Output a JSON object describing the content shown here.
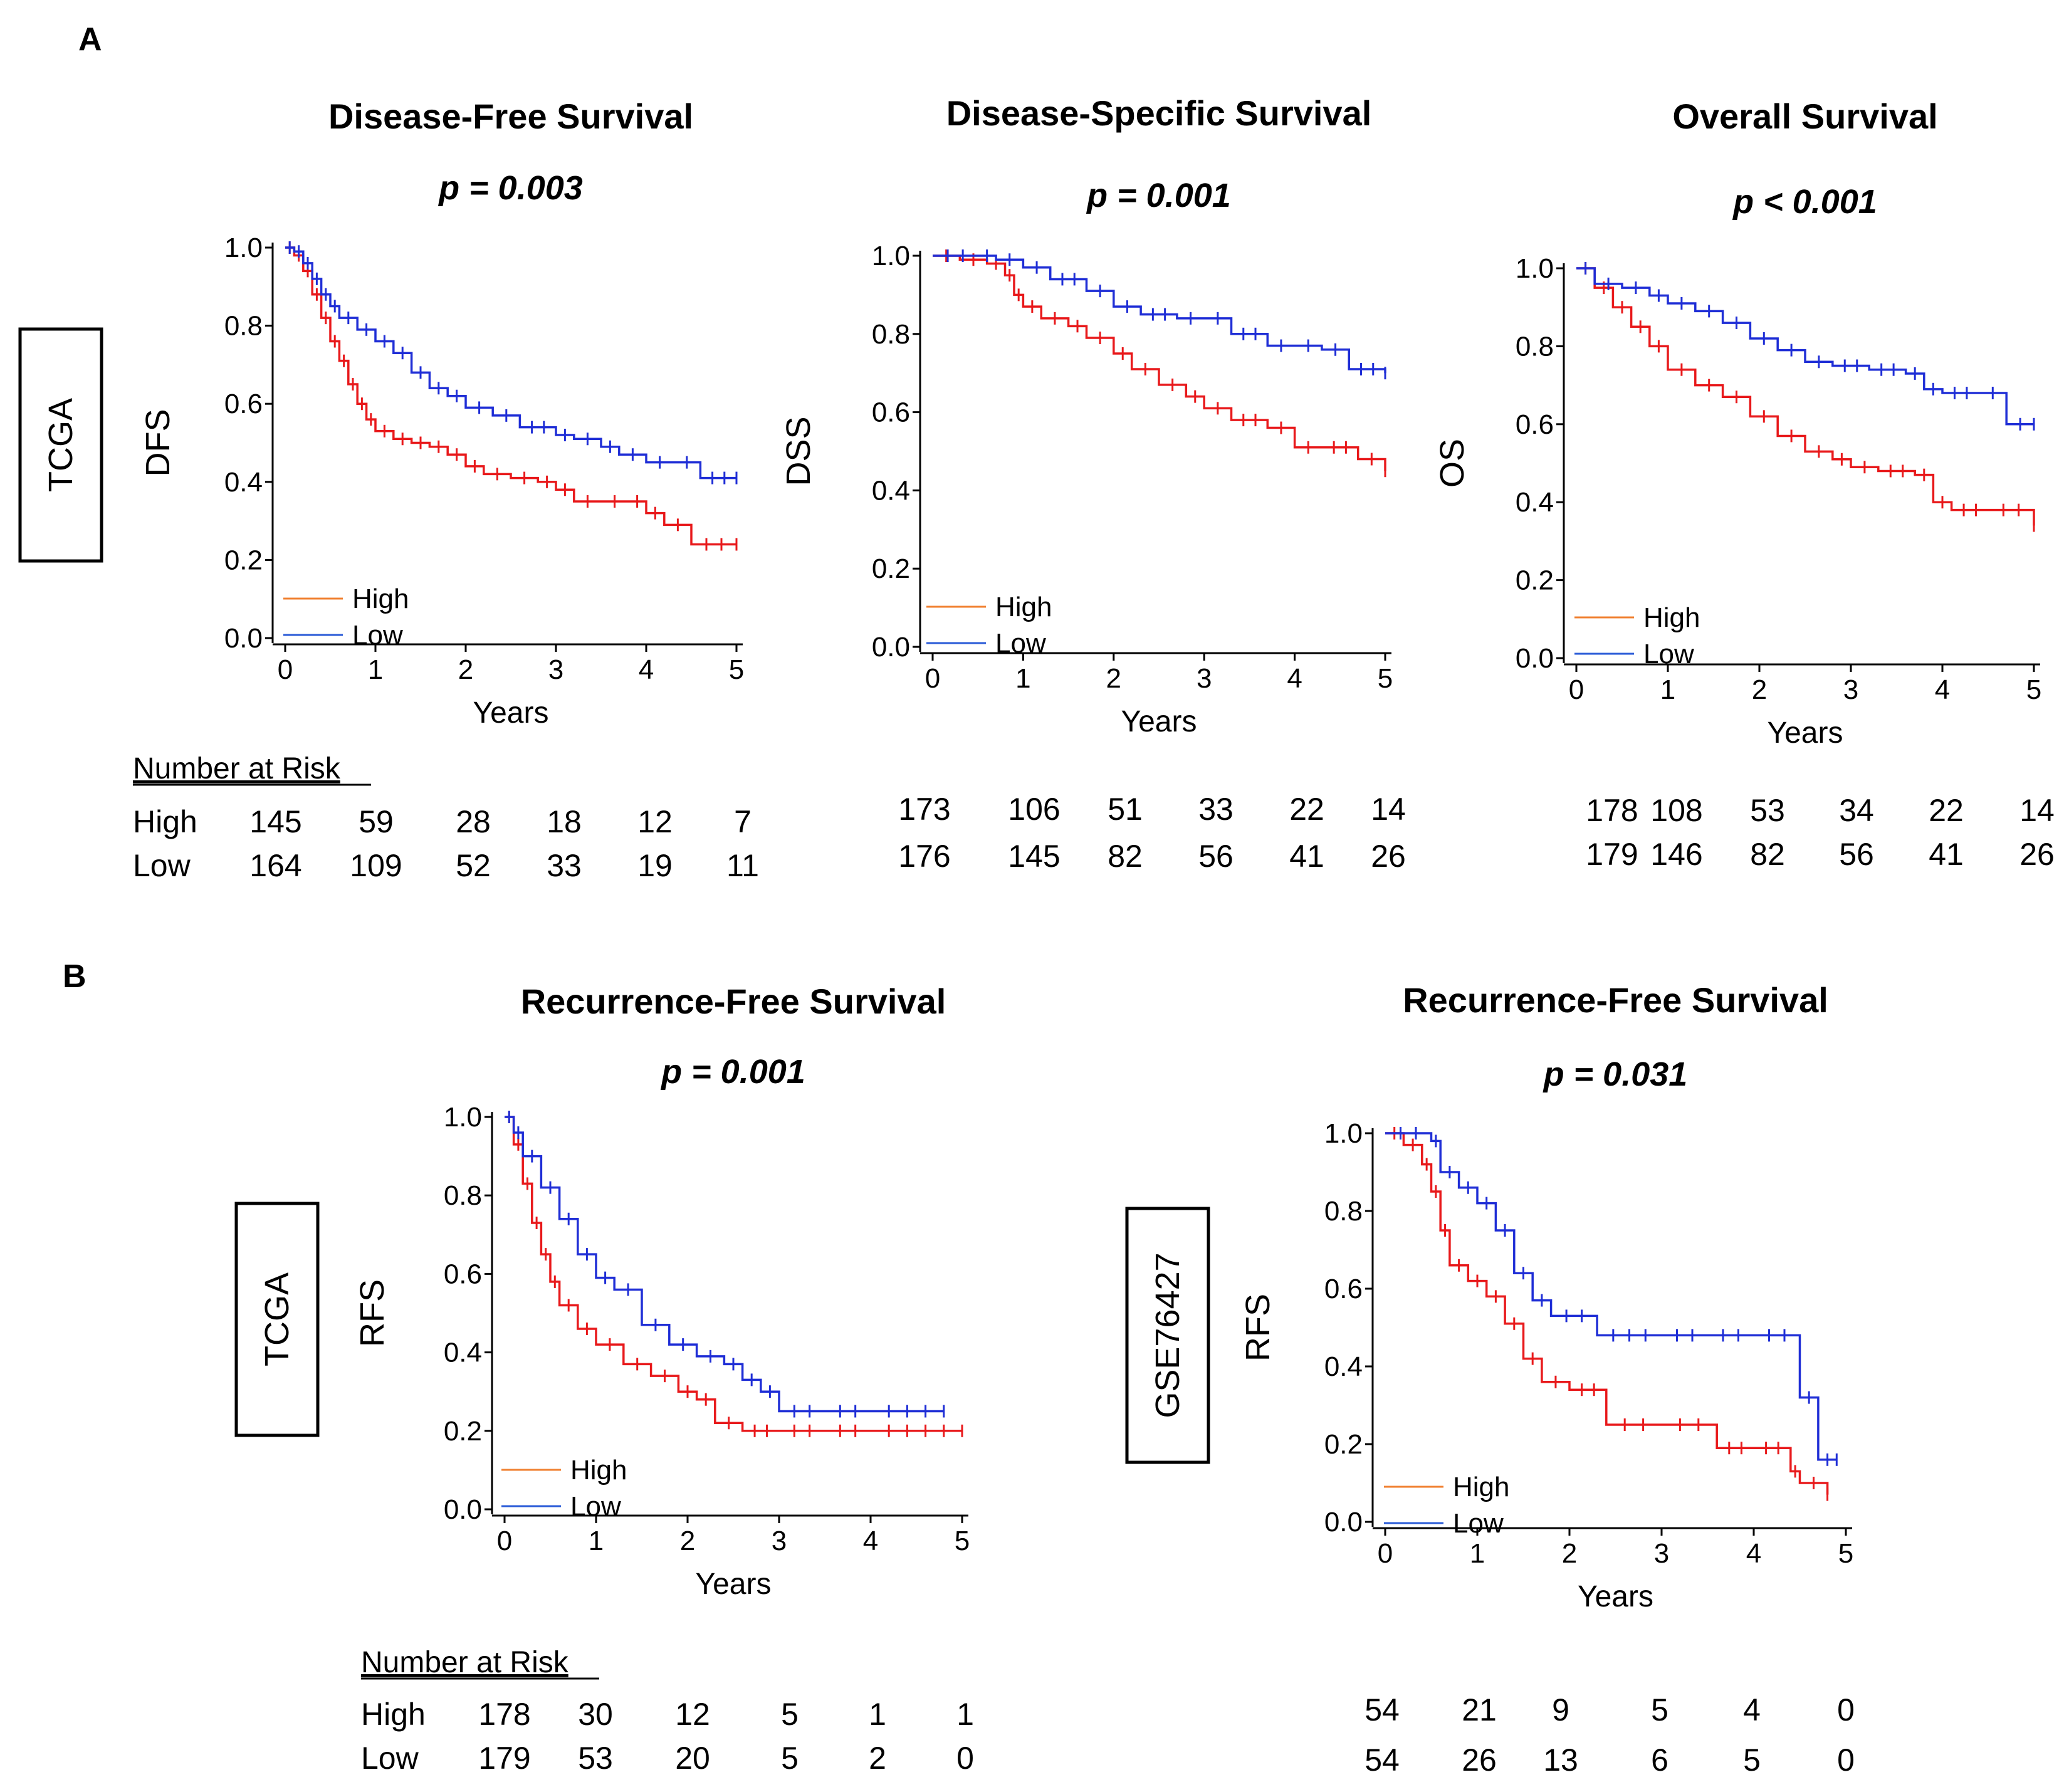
{
  "figure": {
    "section_a_label": "A",
    "section_b_label": "B"
  },
  "colors": {
    "high": "#e8191b",
    "low": "#1f2ed6",
    "legend_high": "#f08030",
    "legend_low": "#2a5bd7",
    "axis": "#000000"
  },
  "chart_data": [
    {
      "type": "line",
      "subtype": "kaplan-meier",
      "title": "Disease-Free Survival",
      "p_value": "p = 0.003",
      "cohort": "TCGA",
      "xlabel": "Years",
      "ylabel": "DFS",
      "xlim": [
        0,
        5
      ],
      "ylim": [
        0,
        1
      ],
      "xticks": [
        "0",
        "1",
        "2",
        "3",
        "4",
        "5"
      ],
      "yticks": [
        "0.0",
        "0.2",
        "0.4",
        "0.6",
        "0.8",
        "1.0"
      ],
      "legend": [
        "High",
        "Low"
      ],
      "legend_position": "bottom-left",
      "series": [
        {
          "name": "High",
          "x": [
            0,
            0.1,
            0.2,
            0.3,
            0.4,
            0.5,
            0.6,
            0.7,
            0.8,
            0.9,
            1.0,
            1.2,
            1.4,
            1.6,
            1.8,
            2.0,
            2.2,
            2.5,
            2.8,
            3.0,
            3.2,
            3.5,
            3.8,
            4.0,
            4.2,
            4.5,
            5.0
          ],
          "values": [
            1.0,
            0.98,
            0.94,
            0.88,
            0.82,
            0.76,
            0.71,
            0.65,
            0.6,
            0.56,
            0.53,
            0.51,
            0.5,
            0.49,
            0.47,
            0.44,
            0.42,
            0.41,
            0.4,
            0.38,
            0.35,
            0.35,
            0.35,
            0.32,
            0.29,
            0.24,
            0.24
          ]
        },
        {
          "name": "Low",
          "x": [
            0,
            0.1,
            0.2,
            0.3,
            0.4,
            0.5,
            0.6,
            0.8,
            1.0,
            1.2,
            1.4,
            1.6,
            1.8,
            2.0,
            2.3,
            2.6,
            3.0,
            3.2,
            3.5,
            3.7,
            4.0,
            4.3,
            4.6,
            5.0
          ],
          "values": [
            1.0,
            0.99,
            0.96,
            0.92,
            0.88,
            0.85,
            0.82,
            0.79,
            0.76,
            0.73,
            0.68,
            0.64,
            0.62,
            0.59,
            0.57,
            0.54,
            0.52,
            0.51,
            0.49,
            0.47,
            0.45,
            0.45,
            0.41,
            0.41
          ]
        }
      ],
      "risk_table": {
        "header": "Number at Risk",
        "rows": [
          {
            "label": "High",
            "values": [
              "145",
              "59",
              "28",
              "18",
              "12",
              "7"
            ]
          },
          {
            "label": "Low",
            "values": [
              "164",
              "109",
              "52",
              "33",
              "19",
              "11"
            ]
          }
        ]
      }
    },
    {
      "type": "line",
      "subtype": "kaplan-meier",
      "title": "Disease-Specific Survival",
      "p_value": "p = 0.001",
      "cohort": "TCGA",
      "xlabel": "Years",
      "ylabel": "DSS",
      "xlim": [
        0,
        5
      ],
      "ylim": [
        0,
        1
      ],
      "xticks": [
        "0",
        "1",
        "2",
        "3",
        "4",
        "5"
      ],
      "yticks": [
        "0.0",
        "0.2",
        "0.4",
        "0.6",
        "0.8",
        "1.0"
      ],
      "legend": [
        "High",
        "Low"
      ],
      "legend_position": "bottom-left",
      "series": [
        {
          "name": "High",
          "x": [
            0,
            0.3,
            0.6,
            0.8,
            0.9,
            1.0,
            1.2,
            1.5,
            1.7,
            2.0,
            2.2,
            2.5,
            2.8,
            3.0,
            3.3,
            3.7,
            4.0,
            4.3,
            4.7,
            5.0
          ],
          "values": [
            1.0,
            0.99,
            0.98,
            0.95,
            0.9,
            0.87,
            0.84,
            0.82,
            0.79,
            0.75,
            0.71,
            0.67,
            0.64,
            0.61,
            0.58,
            0.56,
            0.51,
            0.51,
            0.48,
            0.45
          ]
        },
        {
          "name": "Low",
          "x": [
            0,
            0.5,
            0.7,
            1.0,
            1.3,
            1.7,
            2.0,
            2.3,
            2.7,
            3.0,
            3.3,
            3.7,
            4.0,
            4.3,
            4.6,
            5.0
          ],
          "values": [
            1.0,
            1.0,
            0.99,
            0.97,
            0.94,
            0.91,
            0.87,
            0.85,
            0.84,
            0.84,
            0.8,
            0.77,
            0.77,
            0.76,
            0.71,
            0.7
          ]
        }
      ],
      "risk_table": {
        "header": "",
        "rows": [
          {
            "label": "",
            "values": [
              "173",
              "106",
              "51",
              "33",
              "22",
              "14"
            ]
          },
          {
            "label": "",
            "values": [
              "176",
              "145",
              "82",
              "56",
              "41",
              "26"
            ]
          }
        ]
      }
    },
    {
      "type": "line",
      "subtype": "kaplan-meier",
      "title": "Overall Survival",
      "p_value": "p < 0.001",
      "cohort": "TCGA",
      "xlabel": "Years",
      "ylabel": "OS",
      "xlim": [
        0,
        5
      ],
      "ylim": [
        0,
        1
      ],
      "xticks": [
        "0",
        "1",
        "2",
        "3",
        "4",
        "5"
      ],
      "yticks": [
        "0.0",
        "0.2",
        "0.4",
        "0.6",
        "0.8",
        "1.0"
      ],
      "legend": [
        "High",
        "Low"
      ],
      "legend_position": "bottom-left",
      "series": [
        {
          "name": "High",
          "x": [
            0,
            0.2,
            0.4,
            0.6,
            0.8,
            1.0,
            1.3,
            1.6,
            1.9,
            2.2,
            2.5,
            2.8,
            3.0,
            3.3,
            3.7,
            3.9,
            4.1,
            4.5,
            5.0
          ],
          "values": [
            1.0,
            0.95,
            0.9,
            0.85,
            0.8,
            0.74,
            0.7,
            0.67,
            0.62,
            0.57,
            0.53,
            0.51,
            0.49,
            0.48,
            0.47,
            0.4,
            0.38,
            0.38,
            0.34
          ]
        },
        {
          "name": "Low",
          "x": [
            0,
            0.2,
            0.5,
            0.8,
            1.0,
            1.3,
            1.6,
            1.9,
            2.2,
            2.5,
            2.8,
            3.2,
            3.6,
            3.8,
            4.0,
            4.4,
            4.7,
            5.0
          ],
          "values": [
            1.0,
            0.96,
            0.95,
            0.93,
            0.91,
            0.89,
            0.86,
            0.82,
            0.79,
            0.76,
            0.75,
            0.74,
            0.73,
            0.69,
            0.68,
            0.68,
            0.6,
            0.6
          ]
        }
      ],
      "risk_table": {
        "header": "",
        "rows": [
          {
            "label": "",
            "values": [
              "178",
              "108",
              "53",
              "34",
              "22",
              "14"
            ]
          },
          {
            "label": "",
            "values": [
              "179",
              "146",
              "82",
              "56",
              "41",
              "26"
            ]
          }
        ]
      }
    },
    {
      "type": "line",
      "subtype": "kaplan-meier",
      "title": "Recurrence-Free Survival",
      "p_value": "p = 0.001",
      "cohort": "TCGA",
      "xlabel": "Years",
      "ylabel": "RFS",
      "xlim": [
        0,
        5
      ],
      "ylim": [
        0,
        1
      ],
      "xticks": [
        "0",
        "1",
        "2",
        "3",
        "4",
        "5"
      ],
      "yticks": [
        "0.0",
        "0.2",
        "0.4",
        "0.6",
        "0.8",
        "1.0"
      ],
      "legend": [
        "High",
        "Low"
      ],
      "legend_position": "bottom-left",
      "series": [
        {
          "name": "High",
          "x": [
            0,
            0.1,
            0.2,
            0.3,
            0.4,
            0.5,
            0.6,
            0.8,
            1.0,
            1.3,
            1.6,
            1.9,
            2.1,
            2.3,
            2.6,
            3.0,
            3.5,
            4.0,
            5.0
          ],
          "values": [
            1.0,
            0.93,
            0.83,
            0.73,
            0.65,
            0.58,
            0.52,
            0.46,
            0.42,
            0.37,
            0.34,
            0.3,
            0.28,
            0.22,
            0.2,
            0.2,
            0.2,
            0.2,
            0.2
          ]
        },
        {
          "name": "Low",
          "x": [
            0,
            0.1,
            0.2,
            0.4,
            0.6,
            0.8,
            1.0,
            1.2,
            1.5,
            1.8,
            2.1,
            2.4,
            2.6,
            2.8,
            3.0,
            3.5,
            4.0,
            4.8
          ],
          "values": [
            1.0,
            0.96,
            0.9,
            0.82,
            0.74,
            0.65,
            0.59,
            0.56,
            0.47,
            0.42,
            0.39,
            0.37,
            0.33,
            0.3,
            0.25,
            0.25,
            0.25,
            0.25
          ]
        }
      ],
      "risk_table": {
        "header": "Number at Risk",
        "rows": [
          {
            "label": "High",
            "values": [
              "178",
              "30",
              "12",
              "5",
              "1",
              "1"
            ]
          },
          {
            "label": "Low",
            "values": [
              "179",
              "53",
              "20",
              "5",
              "2",
              "0"
            ]
          }
        ]
      }
    },
    {
      "type": "line",
      "subtype": "kaplan-meier",
      "title": "Recurrence-Free Survival",
      "p_value": "p = 0.031",
      "cohort": "GSE76427",
      "xlabel": "Years",
      "ylabel": "RFS",
      "xlim": [
        0,
        5
      ],
      "ylim": [
        0,
        1
      ],
      "xticks": [
        "0",
        "1",
        "2",
        "3",
        "4",
        "5"
      ],
      "yticks": [
        "0.0",
        "0.2",
        "0.4",
        "0.6",
        "0.8",
        "1.0"
      ],
      "legend": [
        "High",
        "Low"
      ],
      "legend_position": "bottom-left",
      "series": [
        {
          "name": "High",
          "x": [
            0,
            0.2,
            0.4,
            0.5,
            0.6,
            0.7,
            0.9,
            1.1,
            1.3,
            1.5,
            1.7,
            2.0,
            2.4,
            3.0,
            3.6,
            4.0,
            4.4,
            4.5,
            4.8
          ],
          "values": [
            1.0,
            0.97,
            0.92,
            0.85,
            0.75,
            0.66,
            0.62,
            0.58,
            0.51,
            0.42,
            0.36,
            0.34,
            0.25,
            0.25,
            0.19,
            0.19,
            0.13,
            0.1,
            0.07
          ]
        },
        {
          "name": "Low",
          "x": [
            0,
            0.5,
            0.6,
            0.8,
            1.0,
            1.2,
            1.4,
            1.6,
            1.8,
            2.3,
            3.0,
            3.5,
            4.0,
            4.5,
            4.7,
            4.9
          ],
          "values": [
            1.0,
            0.98,
            0.9,
            0.86,
            0.82,
            0.75,
            0.64,
            0.57,
            0.53,
            0.48,
            0.48,
            0.48,
            0.48,
            0.32,
            0.16,
            0.16
          ]
        }
      ],
      "risk_table": {
        "header": "",
        "rows": [
          {
            "label": "",
            "values": [
              "54",
              "21",
              "9",
              "5",
              "4",
              "0"
            ]
          },
          {
            "label": "",
            "values": [
              "54",
              "26",
              "13",
              "6",
              "5",
              "0"
            ]
          }
        ]
      }
    }
  ]
}
